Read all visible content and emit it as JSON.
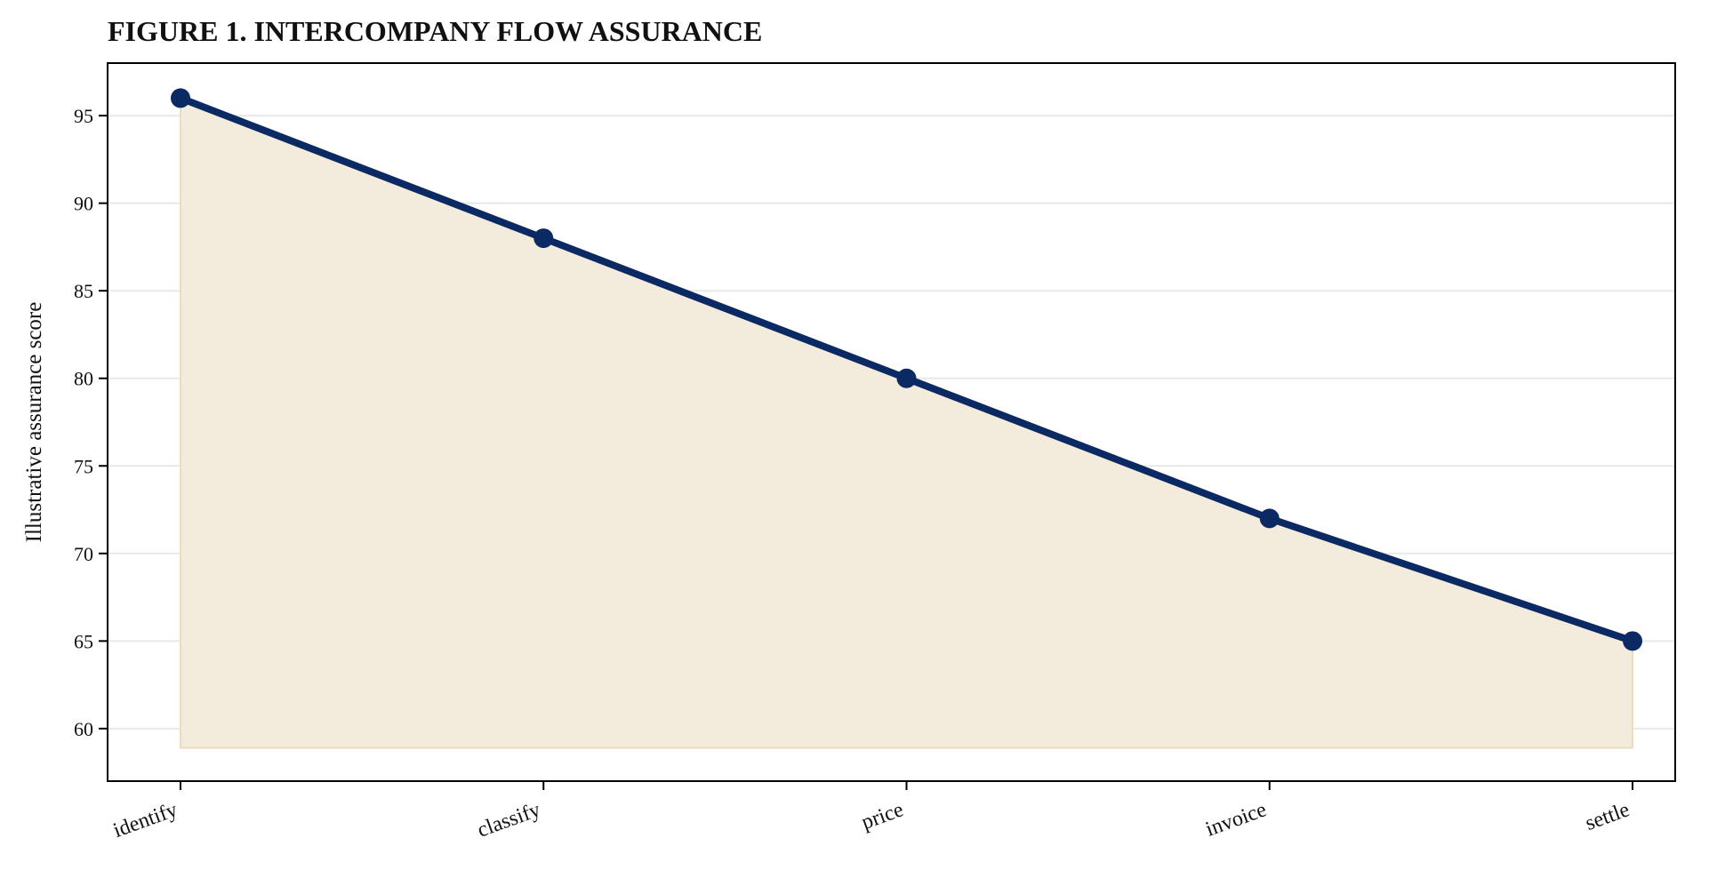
{
  "chart_data": {
    "type": "area",
    "title": "FIGURE 1. INTERCOMPANY FLOW ASSURANCE",
    "xlabel": "",
    "ylabel": "Illustrative assurance score",
    "categories": [
      "identify",
      "classify",
      "price",
      "invoice",
      "settle"
    ],
    "series": [
      {
        "values": [
          96,
          88,
          80,
          72,
          65
        ]
      }
    ],
    "ylim": [
      57,
      98
    ],
    "yticks": [
      60,
      65,
      70,
      75,
      80,
      85,
      90,
      95
    ],
    "fill_baseline": 58.9,
    "grid": "horizontal",
    "legend": "none",
    "colors": {
      "line": "#0b2a63",
      "area_fill": "#f3ebdb",
      "area_edge": "#e9dcc0",
      "grid": "#e8e8e8",
      "axis": "#000000"
    }
  }
}
